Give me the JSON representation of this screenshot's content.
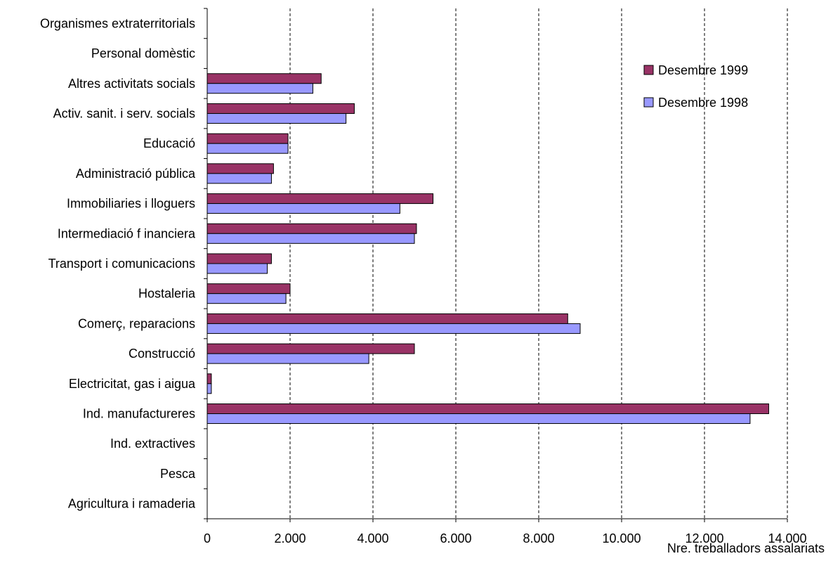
{
  "chart_data": {
    "type": "bar",
    "orientation": "horizontal",
    "title": "",
    "xlabel": "Nre. treballadors assalariats",
    "ylabel": "",
    "xlim": [
      0,
      14000
    ],
    "x_ticks": [
      0,
      2000,
      4000,
      6000,
      8000,
      10000,
      12000,
      14000
    ],
    "x_tick_labels": [
      "0",
      "2.000",
      "4.000",
      "6.000",
      "8.000",
      "10.000",
      "12.000",
      "14.000"
    ],
    "grid": "vertical dashed",
    "legend_position": "top-right",
    "categories": [
      "Agricultura i ramaderia",
      "Pesca",
      "Ind. extractives",
      "Ind. manufactureres",
      "Electricitat, gas i aigua",
      "Construcció",
      "Comerç, reparacions",
      "Hostaleria",
      "Transport i comunicacions",
      "Intermediació f inanciera",
      "Immobiliaries i lloguers",
      "Administració pública",
      "Educació",
      "Activ. sanit. i serv. socials",
      "Altres activitats socials",
      "Personal domèstic",
      "Organismes extraterritorials"
    ],
    "series": [
      {
        "name": "Desembre 1999",
        "color": "#993366",
        "values": [
          0,
          0,
          0,
          13550,
          100,
          5000,
          8700,
          2000,
          1550,
          5050,
          5450,
          1600,
          1950,
          3550,
          2750,
          0,
          0
        ]
      },
      {
        "name": "Desembre 1998",
        "color": "#9999ff",
        "values": [
          0,
          0,
          0,
          13100,
          100,
          3900,
          9000,
          1900,
          1450,
          5000,
          4650,
          1550,
          1950,
          3350,
          2550,
          0,
          0
        ]
      }
    ]
  }
}
